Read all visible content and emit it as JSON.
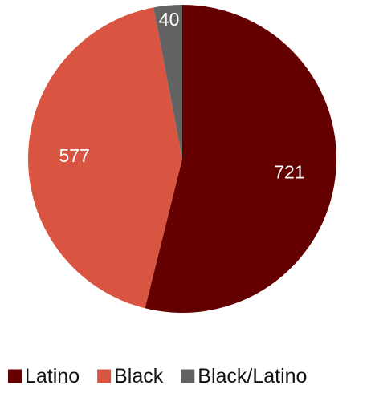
{
  "chart_data": {
    "type": "pie",
    "title": "",
    "legend_position": "bottom",
    "data_labels": "inside",
    "start_angle_deg": 0,
    "direction": "clockwise",
    "slices": [
      {
        "name": "Latino",
        "value": 721,
        "label": "721",
        "color": "#640000"
      },
      {
        "name": "Black",
        "value": 577,
        "label": "577",
        "color": "#DA5442"
      },
      {
        "name": "Black/Latino",
        "value": 40,
        "label": "40",
        "color": "#636363"
      }
    ]
  }
}
